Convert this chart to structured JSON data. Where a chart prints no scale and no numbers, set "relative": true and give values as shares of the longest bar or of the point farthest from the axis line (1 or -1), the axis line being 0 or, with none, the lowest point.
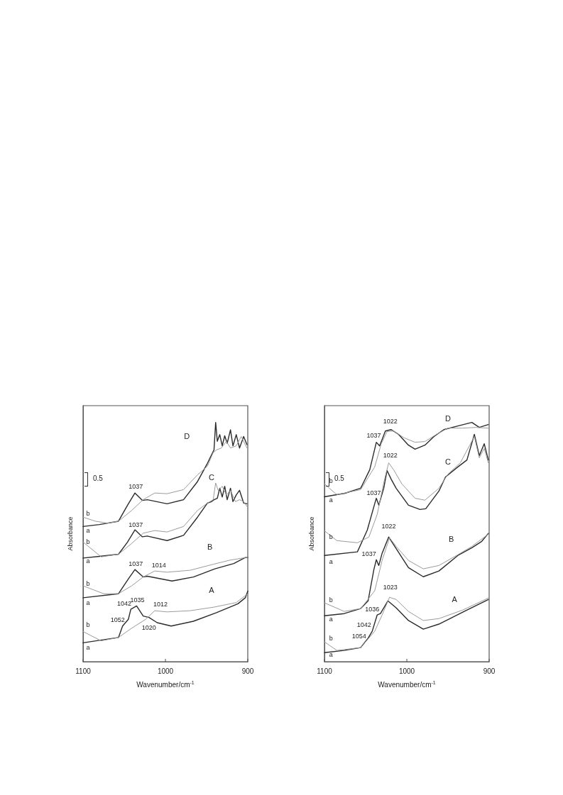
{
  "chart_data": [
    {
      "type": "line",
      "relative": true,
      "xlabel": "Wavenumber/cm$^{-1}$",
      "ylabel": "Absorbance",
      "xlim": [
        1100,
        900
      ],
      "xticks": [
        1100,
        1000,
        900
      ],
      "marker": "none",
      "series": [
        {
          "color": "#2b2b2b",
          "x": [
            1100,
            1080,
            1057,
            1046,
            1037,
            1028,
            1022,
            998,
            978,
            961,
            949,
            941,
            939,
            937,
            934,
            931,
            928,
            925,
            921,
            918,
            914,
            910,
            905,
            901
          ],
          "values": [
            0.565,
            0.573,
            0.587,
            0.654,
            0.705,
            0.674,
            0.677,
            0.66,
            0.677,
            0.753,
            0.829,
            0.885,
            1,
            0.921,
            0.949,
            0.902,
            0.944,
            0.913,
            0.969,
            0.902,
            0.949,
            0.893,
            0.941,
            0.907
          ]
        },
        {
          "color": "#9a9a9a",
          "x": [
            1100,
            1085,
            1070,
            1057,
            1041,
            1027,
            1013,
            998,
            978,
            961,
            949,
            942,
            938,
            932,
            926,
            921,
            914,
            908,
            901
          ],
          "values": [
            0.604,
            0.587,
            0.579,
            0.587,
            0.632,
            0.677,
            0.705,
            0.702,
            0.719,
            0.781,
            0.817,
            0.874,
            0.885,
            0.893,
            0.921,
            0.893,
            0.902,
            0.941,
            0.893
          ]
        },
        {
          "color": "#2b2b2b",
          "x": [
            1100,
            1080,
            1057,
            1046,
            1037,
            1028,
            1022,
            998,
            978,
            961,
            949,
            944,
            941,
            937,
            934,
            931,
            928,
            925,
            921,
            918,
            914,
            910,
            905,
            901
          ],
          "values": [
            0.433,
            0.44,
            0.449,
            0.5,
            0.551,
            0.522,
            0.525,
            0.506,
            0.528,
            0.604,
            0.663,
            0.669,
            0.677,
            0.683,
            0.725,
            0.688,
            0.733,
            0.677,
            0.725,
            0.669,
            0.697,
            0.716,
            0.663,
            0.66
          ]
        },
        {
          "color": "#9a9a9a",
          "x": [
            1100,
            1078,
            1057,
            1041,
            1027,
            1013,
            998,
            978,
            961,
            949,
            942,
            939,
            936,
            931,
            926,
            921,
            915,
            910,
            905,
            901
          ],
          "values": [
            0.5,
            0.438,
            0.449,
            0.494,
            0.537,
            0.548,
            0.542,
            0.565,
            0.632,
            0.663,
            0.677,
            0.747,
            0.716,
            0.733,
            0.697,
            0.716,
            0.669,
            0.677,
            0.669,
            0.649
          ]
        },
        {
          "color": "#2b2b2b",
          "x": [
            1100,
            1057,
            1044,
            1037,
            1027,
            1022,
            992,
            966,
            940,
            917,
            903,
            900
          ],
          "values": [
            0.267,
            0.284,
            0.351,
            0.385,
            0.354,
            0.357,
            0.337,
            0.354,
            0.388,
            0.41,
            0.435,
            0.435
          ]
        },
        {
          "color": "#9a9a9a",
          "x": [
            1100,
            1075,
            1057,
            1041,
            1027,
            1013,
            998,
            970,
            942,
            922,
            903,
            900
          ],
          "values": [
            0.317,
            0.284,
            0.284,
            0.317,
            0.354,
            0.379,
            0.374,
            0.382,
            0.407,
            0.424,
            0.435,
            0.435
          ]
        },
        {
          "color": "#2b2b2b",
          "x": [
            1100,
            1057,
            1052,
            1045,
            1042,
            1035,
            1027,
            1020,
            1010,
            993,
            966,
            938,
            912,
            903,
            900
          ],
          "values": [
            0.079,
            0.101,
            0.149,
            0.177,
            0.219,
            0.233,
            0.191,
            0.185,
            0.163,
            0.149,
            0.169,
            0.205,
            0.242,
            0.267,
            0.295
          ]
        },
        {
          "color": "#9a9a9a",
          "x": [
            1100,
            1078,
            1057,
            1041,
            1024,
            1013,
            998,
            970,
            941,
            914,
            900
          ],
          "values": [
            0.126,
            0.087,
            0.101,
            0.14,
            0.177,
            0.213,
            0.208,
            0.213,
            0.228,
            0.247,
            0.284
          ]
        }
      ],
      "annotations": [
        "0.5",
        "D",
        "C",
        "B",
        "A",
        "1037",
        "1037",
        "1037",
        "1014",
        "1042",
        "1035",
        "1012",
        "1052",
        "1020",
        "b",
        "a",
        "b",
        "a",
        "b",
        "a",
        "b",
        "a"
      ]
    },
    {
      "type": "line",
      "relative": true,
      "xlabel": "Wavenumber/cm$^{-1}$",
      "ylabel": "Absorbance",
      "xlim": [
        1100,
        900
      ],
      "xticks": [
        1100,
        1000,
        900
      ],
      "marker": "none",
      "series": [
        {
          "color": "#2b2b2b",
          "x": [
            1100,
            1075,
            1056,
            1045,
            1037,
            1033,
            1026,
            1019,
            1010,
            998,
            990,
            978,
            967,
            955,
            938,
            921,
            912,
            901
          ],
          "values": [
            0.689,
            0.704,
            0.725,
            0.802,
            0.917,
            0.902,
            0.964,
            0.97,
            0.95,
            0.905,
            0.888,
            0.905,
            0.941,
            0.97,
            0.985,
            1,
            0.979,
            0.991
          ]
        },
        {
          "color": "#9a9a9a",
          "x": [
            1100,
            1085,
            1056,
            1039,
            1031,
            1024,
            1016,
            1003,
            990,
            978,
            964,
            950,
            933,
            916,
            901
          ],
          "values": [
            0.743,
            0.698,
            0.719,
            0.814,
            0.911,
            0.962,
            0.964,
            0.935,
            0.917,
            0.92,
            0.95,
            0.976,
            0.976,
            0.979,
            0.976
          ]
        },
        {
          "color": "#2b2b2b",
          "x": [
            1100,
            1060,
            1048,
            1039,
            1037,
            1034,
            1028,
            1024,
            1019,
            1013,
            998,
            984,
            977,
            961,
            953,
            938,
            927,
            918,
            912,
            906,
            901
          ],
          "values": [
            0.444,
            0.459,
            0.55,
            0.66,
            0.683,
            0.654,
            0.725,
            0.799,
            0.763,
            0.725,
            0.654,
            0.636,
            0.639,
            0.713,
            0.772,
            0.814,
            0.843,
            0.95,
            0.861,
            0.911,
            0.843
          ]
        },
        {
          "color": "#9a9a9a",
          "x": [
            1100,
            1085,
            1060,
            1046,
            1036,
            1027,
            1022,
            1016,
            1006,
            990,
            978,
            961,
            950,
            935,
            918,
            912,
            906,
            901
          ],
          "values": [
            0.547,
            0.506,
            0.497,
            0.521,
            0.615,
            0.763,
            0.831,
            0.802,
            0.743,
            0.683,
            0.675,
            0.725,
            0.784,
            0.831,
            0.941,
            0.852,
            0.891,
            0.831
          ]
        },
        {
          "color": "#2b2b2b",
          "x": [
            1100,
            1076,
            1056,
            1047,
            1040,
            1037,
            1034,
            1030,
            1022,
            1013,
            998,
            980,
            961,
            938,
            921,
            909,
            901
          ],
          "values": [
            0.192,
            0.201,
            0.222,
            0.254,
            0.385,
            0.426,
            0.402,
            0.453,
            0.521,
            0.473,
            0.393,
            0.355,
            0.379,
            0.444,
            0.476,
            0.503,
            0.536
          ]
        },
        {
          "color": "#9a9a9a",
          "x": [
            1100,
            1076,
            1056,
            1039,
            1030,
            1021,
            1013,
            998,
            980,
            961,
            938,
            921,
            901
          ],
          "values": [
            0.246,
            0.21,
            0.222,
            0.296,
            0.423,
            0.518,
            0.482,
            0.423,
            0.388,
            0.402,
            0.447,
            0.482,
            0.533
          ]
        },
        {
          "color": "#2b2b2b",
          "x": [
            1100,
            1076,
            1056,
            1047,
            1042,
            1036,
            1032,
            1023,
            1013,
            998,
            980,
            961,
            932,
            901
          ],
          "values": [
            0.038,
            0.047,
            0.059,
            0.098,
            0.127,
            0.195,
            0.201,
            0.254,
            0.225,
            0.172,
            0.136,
            0.157,
            0.207,
            0.26
          ]
        },
        {
          "color": "#9a9a9a",
          "x": [
            1100,
            1085,
            1056,
            1039,
            1030,
            1021,
            1013,
            998,
            980,
            961,
            932,
            901
          ],
          "values": [
            0.083,
            0.047,
            0.059,
            0.127,
            0.195,
            0.269,
            0.26,
            0.21,
            0.172,
            0.18,
            0.216,
            0.266
          ]
        }
      ],
      "annotations": [
        "0.5",
        "D",
        "1022",
        "1037",
        "C",
        "1022",
        "1037",
        "1022",
        "B",
        "1037",
        "1023",
        "A",
        "1036",
        "1042",
        "1054",
        "b",
        "a",
        "b",
        "a",
        "b",
        "a",
        "b",
        "a"
      ]
    }
  ]
}
